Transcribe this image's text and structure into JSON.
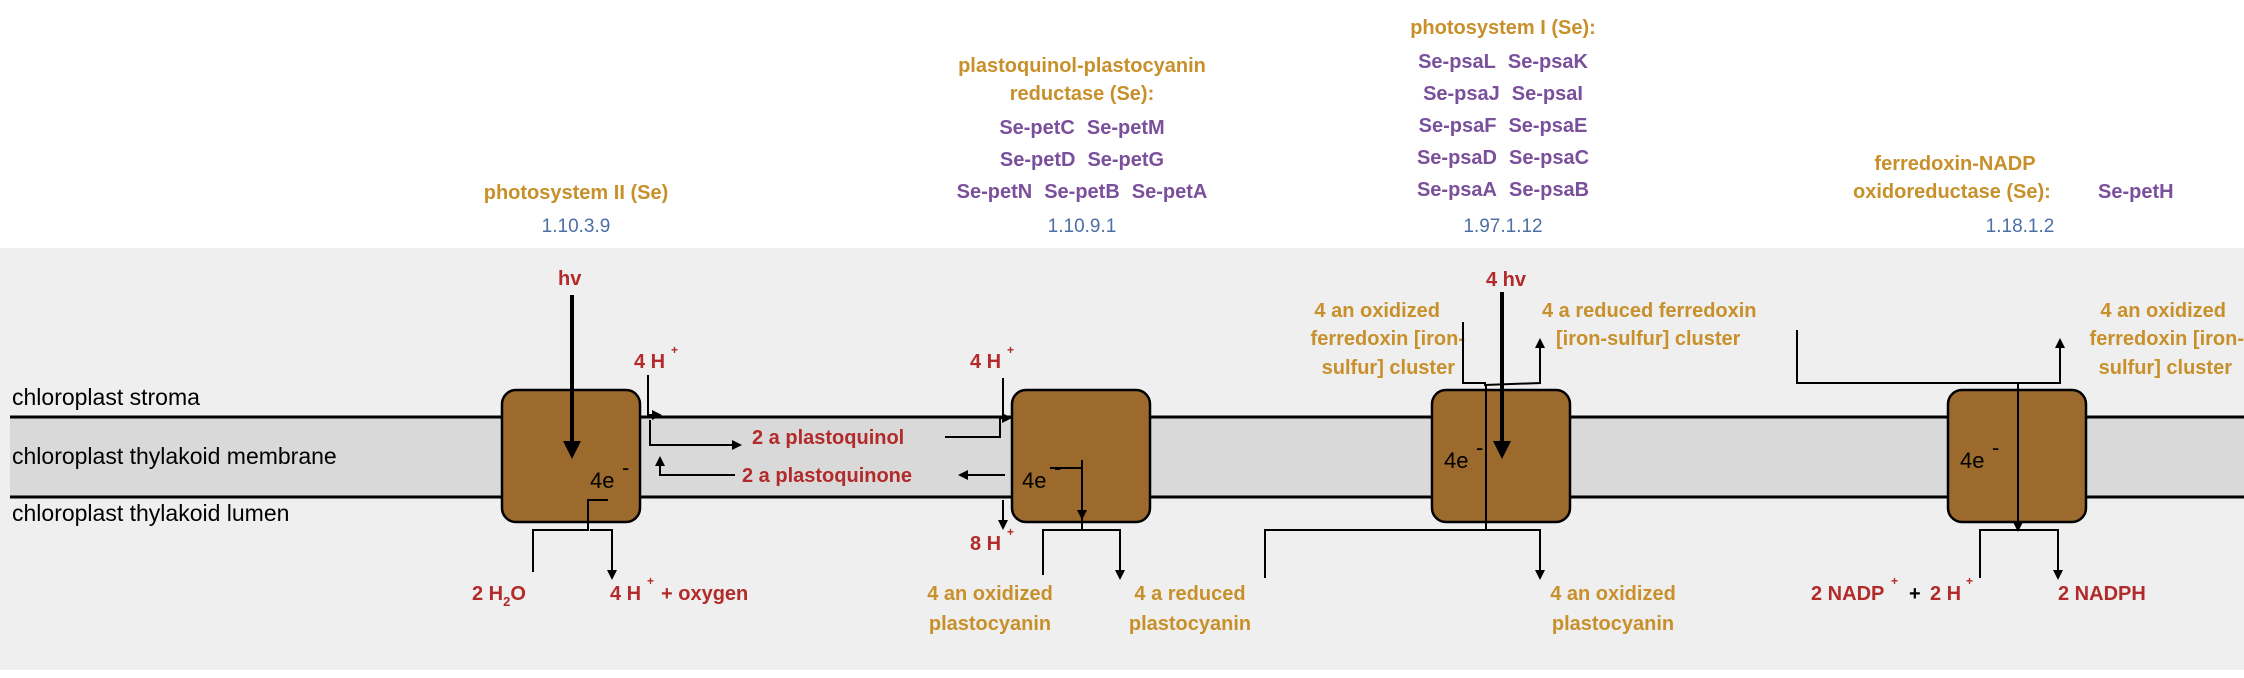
{
  "compartments": {
    "stroma": "chloroplast stroma",
    "membrane": "chloroplast thylakoid membrane",
    "lumen": "chloroplast thylakoid lumen"
  },
  "colors": {
    "enzyme_name": "#c8902a",
    "gene": "#7a4f9c",
    "ec_number": "#4b6fa6",
    "metabolite_red": "#b22a2a",
    "complex_fill": "#9c6a2c",
    "membrane_band": "#d9d9d9",
    "background_band": "#efefef"
  },
  "enzymes": {
    "ps2": {
      "name": "photosystem II (Se)",
      "ec": "1.10.3.9",
      "electron_label": "4e",
      "light": "hv",
      "inputs": {
        "h_count": "4 H",
        "water_coef": "2 H",
        "water_sub": "2",
        "water_tail": "O"
      },
      "outputs": {
        "h_count": "4 H",
        "oxygen": "+ oxygen"
      }
    },
    "cyt": {
      "name_line1": "plastoquinol-plastocyanin",
      "name_line2": "reductase (Se):",
      "genes_row1": [
        "Se-petC",
        "Se-petM"
      ],
      "genes_row2": [
        "Se-petD",
        "Se-petG"
      ],
      "genes_row3": [
        "Se-petN",
        "Se-petB",
        "Se-petA"
      ],
      "ec": "1.10.9.1",
      "electron_label": "4e",
      "h_top": "4 H",
      "h_bottom": "8 H",
      "plastoquinol": "2 a plastoquinol",
      "plastoquinone": "2 a plastoquinone",
      "ox_pc_1": "4 an oxidized",
      "ox_pc_2": "plastocyanin",
      "red_pc_1": "4 a reduced",
      "red_pc_2": "plastocyanin"
    },
    "ps1": {
      "name": "photosystem I (Se):",
      "genes": [
        [
          "Se-psaL",
          "Se-psaK"
        ],
        [
          "Se-psaJ",
          "Se-psaI"
        ],
        [
          "Se-psaF",
          "Se-psaE"
        ],
        [
          "Se-psaD",
          "Se-psaC"
        ],
        [
          "Se-psaA",
          "Se-psaB"
        ]
      ],
      "ec": "1.97.1.12",
      "electron_label": "4e",
      "light": "4 hv",
      "ox_fd_1": "4 an oxidized",
      "ox_fd_2": "ferredoxin [iron-",
      "ox_fd_3": "sulfur] cluster",
      "red_fd_1": "4 a reduced ferredoxin",
      "red_fd_2": "[iron-sulfur] cluster",
      "ox_pc_1": "4 an oxidized",
      "ox_pc_2": "plastocyanin"
    },
    "fnr": {
      "name_line1": "ferredoxin-NADP",
      "name_line2": "oxidoreductase (Se):",
      "gene": "Se-petH",
      "ec": "1.18.1.2",
      "electron_label": "4e",
      "ox_fd_1": "4 an oxidized",
      "ox_fd_2": "ferredoxin [iron-",
      "ox_fd_3": "sulfur] cluster",
      "nadp": "2 NADP",
      "plus": "+",
      "h": "2 H",
      "nadph": "2 NADPH"
    }
  },
  "glyphs": {
    "plus_sup": "+",
    "minus_sup": "-"
  }
}
